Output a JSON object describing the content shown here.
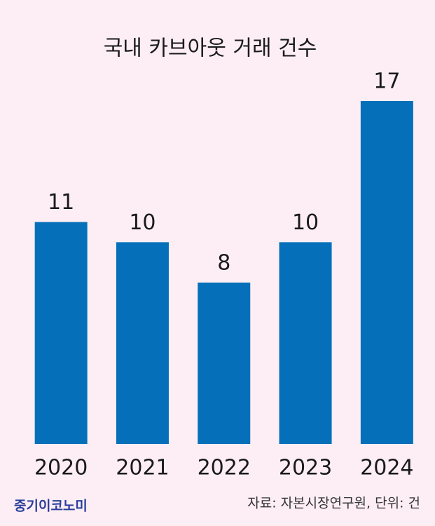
{
  "chart_data": {
    "type": "bar",
    "title": "국내 카브아웃 거래 건수",
    "categories": [
      "2020",
      "2021",
      "2022",
      "2023",
      "2024"
    ],
    "values": [
      11,
      10,
      8,
      10,
      17
    ],
    "color": "#0570b9",
    "source": "자료: 자본시장연구원, 단위: 건",
    "brand": "중기이코노미"
  }
}
